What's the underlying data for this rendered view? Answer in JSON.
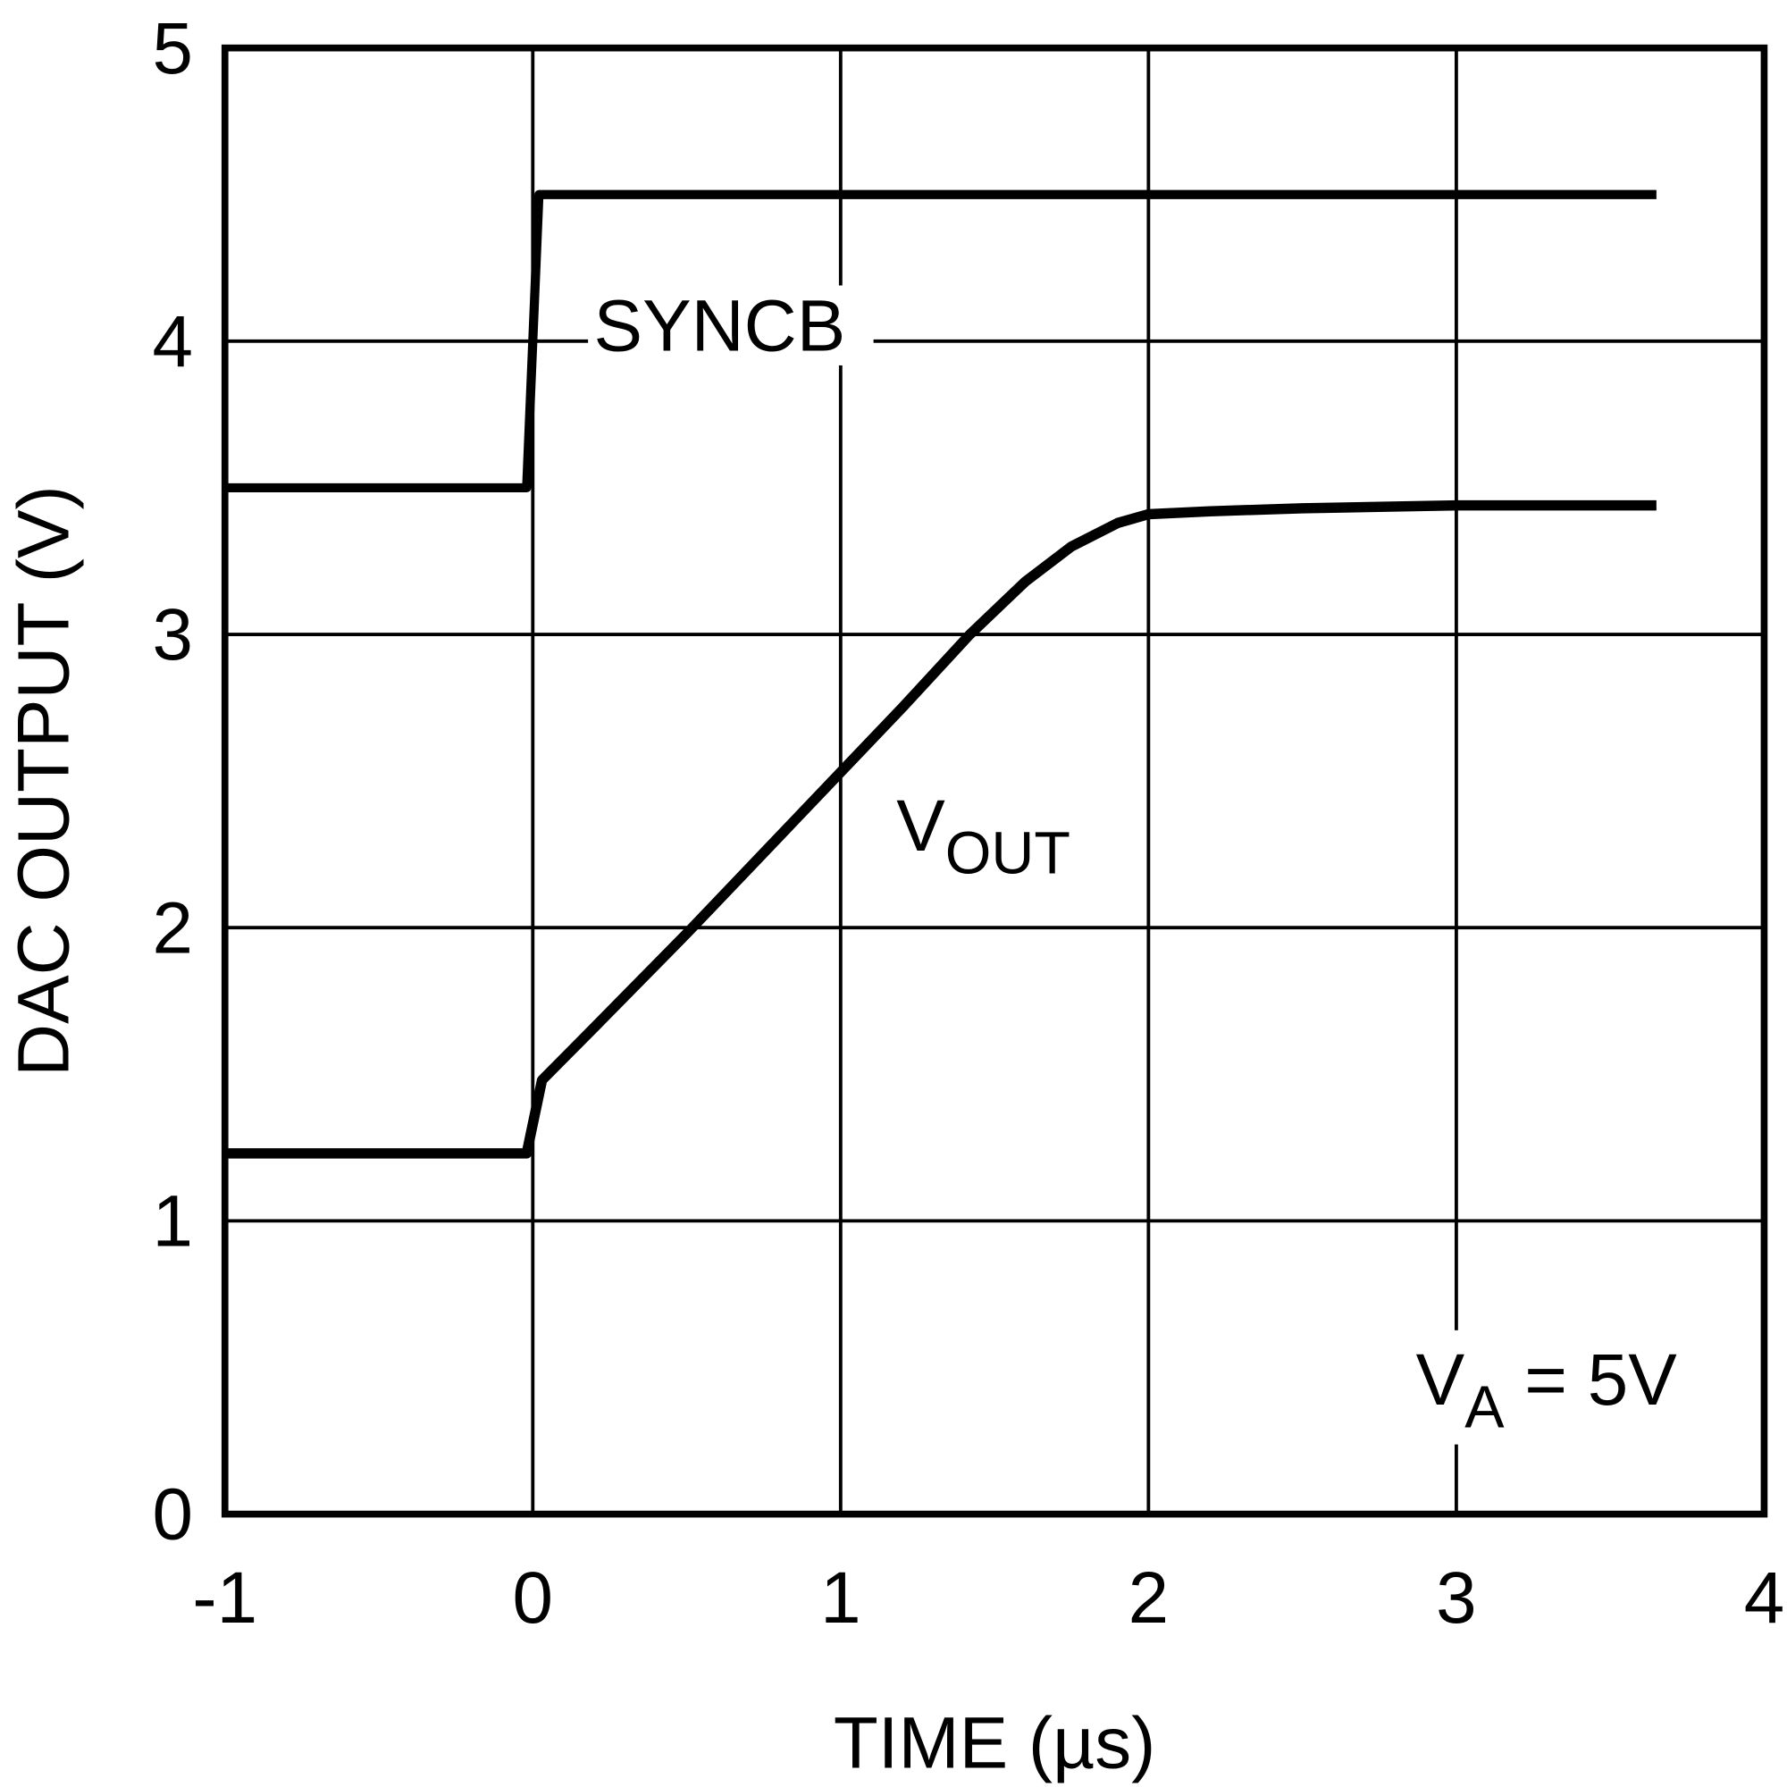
{
  "chart_data": {
    "type": "line",
    "xlabel": "TIME (µs)",
    "ylabel": "DAC OUTPUT (V)",
    "xlim": [
      -1,
      4
    ],
    "ylim": [
      0,
      5
    ],
    "xticks": [
      "-1",
      "0",
      "1",
      "2",
      "3",
      "4"
    ],
    "yticks": [
      "0",
      "1",
      "2",
      "3",
      "4",
      "5"
    ],
    "grid": true,
    "series": [
      {
        "name": "SYNCB",
        "x": [
          -1,
          -0.02,
          0.02,
          3.65
        ],
        "y": [
          3.5,
          3.5,
          4.5,
          4.5
        ]
      },
      {
        "name": "VOUT",
        "name_main": "V",
        "name_sub": "OUT",
        "x": [
          -1,
          -0.02,
          0.03,
          0.2,
          0.5,
          0.8,
          1.0,
          1.2,
          1.42,
          1.6,
          1.75,
          1.9,
          2.0,
          2.2,
          2.5,
          3.0,
          3.65
        ],
        "y": [
          1.23,
          1.23,
          1.48,
          1.66,
          1.98,
          2.31,
          2.53,
          2.75,
          3.0,
          3.18,
          3.3,
          3.38,
          3.41,
          3.42,
          3.43,
          3.44,
          3.44
        ]
      }
    ],
    "annotations": {
      "condition_main": "V",
      "condition_sub": "A",
      "condition_rest": " = 5V"
    }
  }
}
